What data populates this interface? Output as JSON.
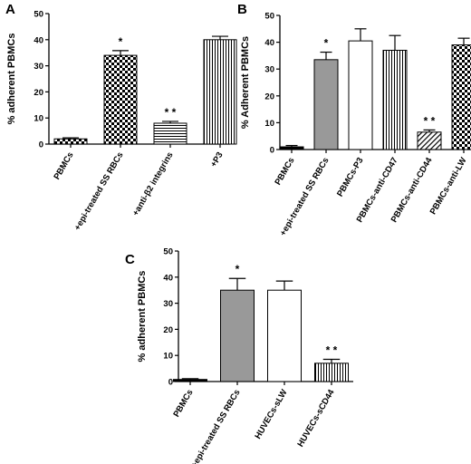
{
  "chart_data": [
    {
      "panel": "A",
      "type": "bar",
      "ylabel": "% adherent PBMCs",
      "ylim": [
        0,
        50
      ],
      "yticks": [
        0,
        10,
        20,
        30,
        40,
        50
      ],
      "categories": [
        "PBMCs",
        "+epi-treated SS RBCs",
        "+anti-β2 integrins",
        "+P3"
      ],
      "values": [
        2,
        34,
        8,
        40
      ],
      "errors": [
        0.4,
        1.8,
        0.7,
        1.3
      ],
      "significance": [
        "",
        "*",
        "* *",
        ""
      ],
      "patterns": [
        "checker",
        "checker",
        "hlines",
        "vlines"
      ]
    },
    {
      "panel": "B",
      "type": "bar",
      "ylabel": "% Adherent PBMCs",
      "ylim": [
        0,
        50
      ],
      "yticks": [
        0,
        10,
        20,
        30,
        40,
        50
      ],
      "categories": [
        "PBMCs",
        "+epi-treated SS RBCs",
        "PBMCs-P3",
        "PBMCs-anti-CD47",
        "PBMCs-anti-CD44",
        "PBMCs-anti-LW"
      ],
      "values": [
        1,
        33.5,
        40.5,
        37,
        6.5,
        39
      ],
      "errors": [
        0.5,
        2.8,
        4.5,
        5.5,
        0.8,
        2.5
      ],
      "significance": [
        "",
        "*",
        "",
        "",
        "* *",
        ""
      ],
      "patterns": [
        "solid",
        "gray",
        "white",
        "vlines",
        "diag",
        "checker"
      ]
    },
    {
      "panel": "C",
      "type": "bar",
      "ylabel": "% adherent PBMCs",
      "ylim": [
        0,
        50
      ],
      "yticks": [
        0,
        10,
        20,
        30,
        40,
        50
      ],
      "categories": [
        "PBMCs",
        "+epi-treated SS RBCs",
        "HUVECs-sLW",
        "HUVECs-sCD44"
      ],
      "values": [
        0.8,
        35,
        35,
        7
      ],
      "errors": [
        0.3,
        4.5,
        3.5,
        1.5
      ],
      "significance": [
        "",
        "*",
        "",
        "* *"
      ],
      "patterns": [
        "solid",
        "gray",
        "white",
        "vlines"
      ]
    }
  ]
}
